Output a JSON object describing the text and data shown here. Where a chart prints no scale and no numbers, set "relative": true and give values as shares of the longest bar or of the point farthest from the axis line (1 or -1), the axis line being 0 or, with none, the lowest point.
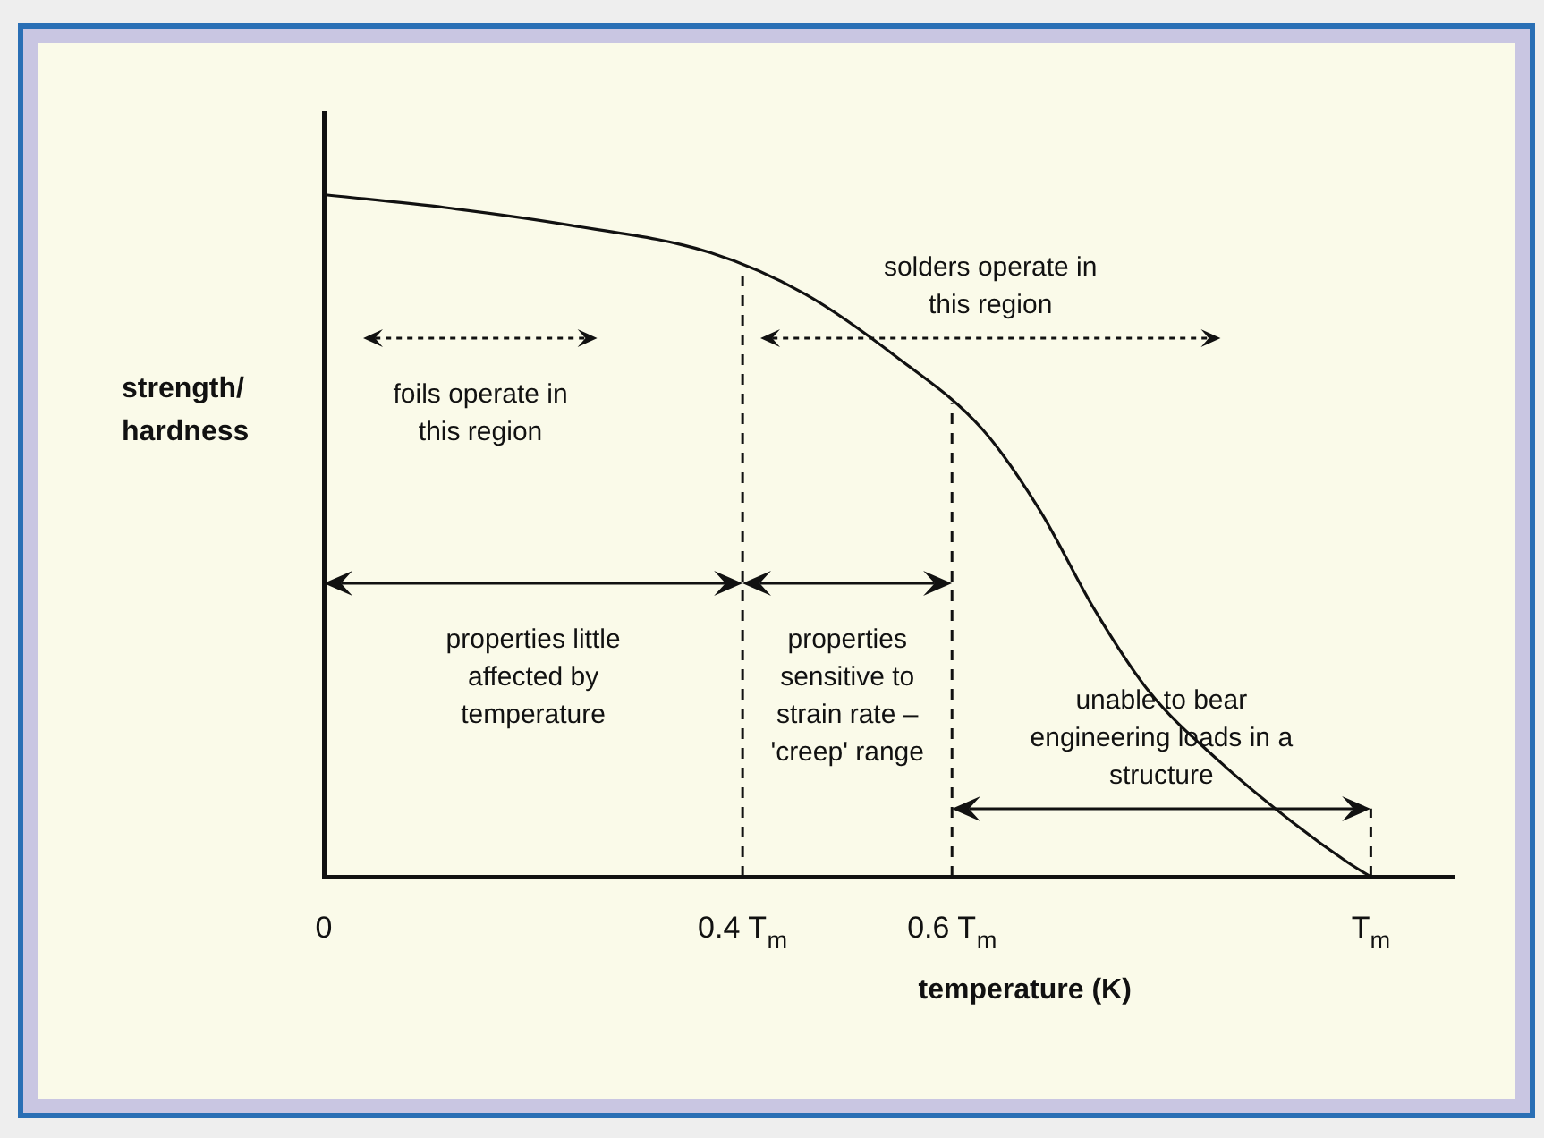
{
  "chart_data": {
    "type": "line",
    "relative": true,
    "xlabel": "temperature (K)",
    "ylabel": "strength/ hardness",
    "color": "#111111",
    "x": [
      0,
      0.116,
      0.236,
      0.369,
      0.46,
      0.547,
      0.629,
      0.684,
      0.736,
      0.788,
      0.857,
      0.926,
      0.978,
      1
    ],
    "values": [
      1,
      0.981,
      0.955,
      0.915,
      0.854,
      0.762,
      0.656,
      0.537,
      0.392,
      0.272,
      0.167,
      0.079,
      0.021,
      0
    ],
    "xlim": [
      0,
      1.08
    ],
    "xticks": [
      {
        "value": 0,
        "label": "0"
      },
      {
        "value": 0.4,
        "label": "0.4 T$_{m}$"
      },
      {
        "value": 0.6,
        "label": "0.6 T$_{m}$"
      },
      {
        "value": 1,
        "label": "T$_{m}$"
      }
    ],
    "ref_lines": [
      {
        "axis": "x",
        "value": 0.4,
        "line_style": "dashed"
      },
      {
        "axis": "x",
        "value": 0.6,
        "line_style": "dashed"
      },
      {
        "axis": "x",
        "value": 1,
        "line_style": "dashed"
      }
    ],
    "annotations": [
      "properties little affected by temperature",
      "properties sensitive to strain rate – 'creep' range",
      "unable to bear engineering loads in a structure",
      "foils operate in this region",
      "solders operate in this region"
    ],
    "grid": false,
    "legend": false,
    "marker": "none",
    "line_style": "solid"
  }
}
